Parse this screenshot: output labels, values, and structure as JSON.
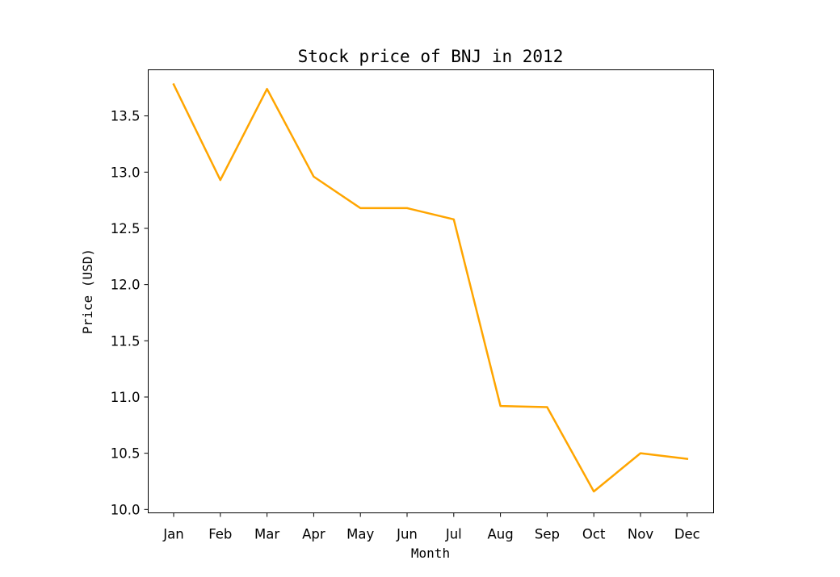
{
  "chart_data": {
    "type": "line",
    "title": "Stock price of BNJ in 2012",
    "xlabel": "Month",
    "ylabel": "Price (USD)",
    "categories": [
      "Jan",
      "Feb",
      "Mar",
      "Apr",
      "May",
      "Jun",
      "Jul",
      "Aug",
      "Sep",
      "Oct",
      "Nov",
      "Dec"
    ],
    "series": [
      {
        "values": [
          13.78,
          12.93,
          13.74,
          12.96,
          12.68,
          12.68,
          12.58,
          10.92,
          10.91,
          10.16,
          10.5,
          10.45
        ],
        "color": "#ffa500"
      }
    ],
    "ylim": [
      9.97,
      13.91
    ],
    "yticks": [
      10.0,
      10.5,
      11.0,
      11.5,
      12.0,
      12.5,
      13.0,
      13.5
    ],
    "ytick_labels": [
      "10.0",
      "10.5",
      "11.0",
      "11.5",
      "12.0",
      "12.5",
      "13.0",
      "13.5"
    ],
    "grid": false,
    "legend": "none"
  }
}
